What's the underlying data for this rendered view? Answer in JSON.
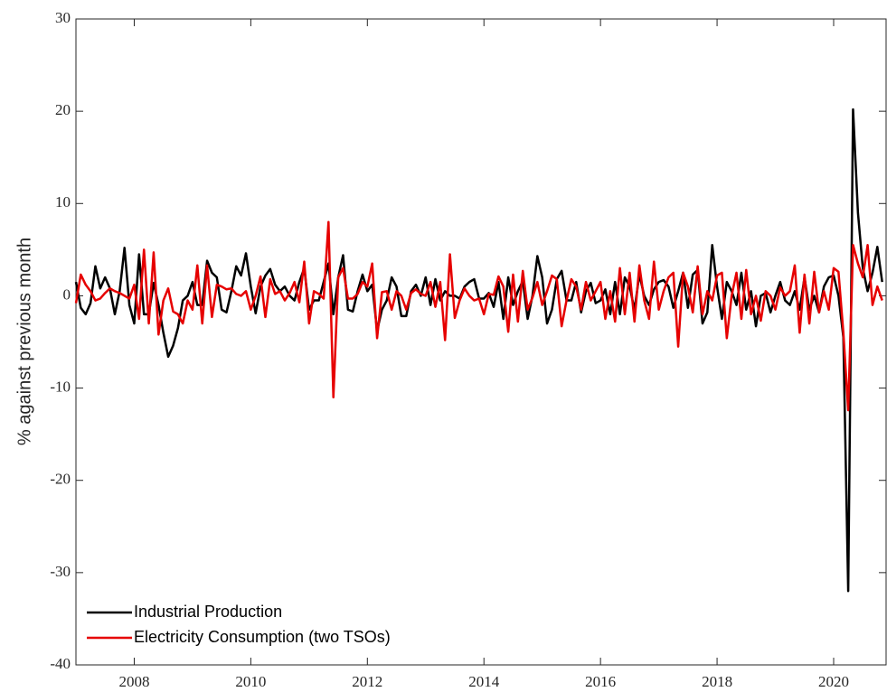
{
  "chart_data": {
    "type": "line",
    "ylabel": "% against previous month",
    "x": [
      2007,
      2007.083,
      2007.167,
      2007.25,
      2007.333,
      2007.417,
      2007.5,
      2007.583,
      2007.667,
      2007.75,
      2007.833,
      2007.917,
      2008,
      2008.083,
      2008.167,
      2008.25,
      2008.333,
      2008.417,
      2008.5,
      2008.583,
      2008.667,
      2008.75,
      2008.833,
      2008.917,
      2009,
      2009.083,
      2009.167,
      2009.25,
      2009.333,
      2009.417,
      2009.5,
      2009.583,
      2009.667,
      2009.75,
      2009.833,
      2009.917,
      2010,
      2010.083,
      2010.167,
      2010.25,
      2010.333,
      2010.417,
      2010.5,
      2010.583,
      2010.667,
      2010.75,
      2010.833,
      2010.917,
      2011,
      2011.083,
      2011.167,
      2011.25,
      2011.333,
      2011.417,
      2011.5,
      2011.583,
      2011.667,
      2011.75,
      2011.833,
      2011.917,
      2012,
      2012.083,
      2012.167,
      2012.25,
      2012.333,
      2012.417,
      2012.5,
      2012.583,
      2012.667,
      2012.75,
      2012.833,
      2012.917,
      2013,
      2013.083,
      2013.167,
      2013.25,
      2013.333,
      2013.417,
      2013.5,
      2013.583,
      2013.667,
      2013.75,
      2013.833,
      2013.917,
      2014,
      2014.083,
      2014.167,
      2014.25,
      2014.333,
      2014.417,
      2014.5,
      2014.583,
      2014.667,
      2014.75,
      2014.833,
      2014.917,
      2015,
      2015.083,
      2015.167,
      2015.25,
      2015.333,
      2015.417,
      2015.5,
      2015.583,
      2015.667,
      2015.75,
      2015.833,
      2015.917,
      2016,
      2016.083,
      2016.167,
      2016.25,
      2016.333,
      2016.417,
      2016.5,
      2016.583,
      2016.667,
      2016.75,
      2016.833,
      2016.917,
      2017,
      2017.083,
      2017.167,
      2017.25,
      2017.333,
      2017.417,
      2017.5,
      2017.583,
      2017.667,
      2017.75,
      2017.833,
      2017.917,
      2018,
      2018.083,
      2018.167,
      2018.25,
      2018.333,
      2018.417,
      2018.5,
      2018.583,
      2018.667,
      2018.75,
      2018.833,
      2018.917,
      2019,
      2019.083,
      2019.167,
      2019.25,
      2019.333,
      2019.417,
      2019.5,
      2019.583,
      2019.667,
      2019.75,
      2019.833,
      2019.917,
      2020,
      2020.083,
      2020.167,
      2020.25,
      2020.333,
      2020.417,
      2020.5,
      2020.583,
      2020.667,
      2020.75,
      2020.833
    ],
    "series": [
      {
        "name": "Industrial Production",
        "color": "#000000",
        "values": [
          1.5,
          -1.3,
          -2,
          -0.8,
          3.2,
          0.8,
          2,
          0.8,
          -2,
          0.5,
          5.2,
          -1,
          -3,
          4.5,
          -2,
          -2,
          1.4,
          -1,
          -4,
          -6.6,
          -5.4,
          -3.5,
          -0.5,
          0,
          1.5,
          -1,
          -1,
          3.8,
          2.5,
          2,
          -1.5,
          -1.8,
          0.5,
          3.2,
          2.2,
          4.6,
          1,
          -1.9,
          1,
          2.2,
          2.9,
          1.2,
          0.5,
          1,
          0,
          -0.5,
          1.5,
          3,
          -1.5,
          -0.5,
          -0.5,
          1.5,
          3.5,
          -2,
          2,
          4.4,
          -1.5,
          -1.7,
          0.5,
          2.3,
          0.5,
          1.2,
          -3.8,
          -1.5,
          -0.5,
          2,
          1,
          -2.2,
          -2.2,
          0.5,
          1.2,
          0,
          2,
          -1,
          1.8,
          -0.5,
          0.5,
          0,
          0,
          -0.3,
          1,
          1.5,
          1.8,
          -0.3,
          -0.3,
          0.3,
          -1.2,
          1.5,
          -2.5,
          2,
          -1,
          0.5,
          1.6,
          -2.5,
          0,
          4.3,
          2,
          -3,
          -1.5,
          1.8,
          2.7,
          -0.5,
          -0.5,
          1.5,
          -1.8,
          0.5,
          1.4,
          -0.8,
          -0.5,
          0.7,
          -2,
          1.5,
          -2,
          2,
          1,
          -1.5,
          2.3,
          0,
          -1,
          0.7,
          1.5,
          1.7,
          1,
          -1.3,
          0.5,
          2.5,
          -1.3,
          2.3,
          2.8,
          -3,
          -1.8,
          5.5,
          1,
          -2.5,
          1.5,
          0.5,
          -1,
          2.5,
          -1.5,
          0.5,
          -3.3,
          0,
          0.3,
          -1.8,
          0,
          1.5,
          -0.5,
          -1,
          0.5,
          -1.5,
          2,
          -1.5,
          0,
          -1.8,
          1,
          2,
          2.2,
          0,
          -4.5,
          -32,
          20.2,
          9,
          3,
          0.5,
          2.5,
          5.3,
          1.5
        ]
      },
      {
        "name": "Electricity Consumption (two TSOs)",
        "color": "#e60000",
        "values": [
          -0.8,
          2.3,
          1.2,
          0.5,
          -0.5,
          -0.3,
          0.3,
          0.8,
          0.5,
          0.3,
          0,
          -0.3,
          1.2,
          -2.5,
          5,
          -3,
          4.7,
          -4.2,
          -0.5,
          0.8,
          -1.7,
          -2,
          -3,
          -0.5,
          -1.5,
          3.3,
          -3,
          3.3,
          -2.3,
          1.2,
          1,
          0.7,
          0.8,
          0.2,
          0,
          0.5,
          -1.5,
          0,
          2.1,
          -2.3,
          1.8,
          0.2,
          0.5,
          -0.5,
          0.3,
          1.5,
          -0.7,
          3.7,
          -3,
          0.5,
          0.2,
          -0.3,
          8,
          -11,
          2,
          3,
          -0.3,
          -0.3,
          0.2,
          1.5,
          1,
          3.5,
          -4.6,
          0.4,
          0.5,
          -1.5,
          0.5,
          0,
          -1.5,
          0.3,
          0.7,
          0.2,
          0,
          1.5,
          -1.2,
          1.5,
          -4.8,
          4.5,
          -2.4,
          -0.5,
          0.8,
          0,
          -0.5,
          -0.3,
          -2,
          0.2,
          0.1,
          2.1,
          1,
          -3.9,
          2.3,
          -2.8,
          2.7,
          -1.5,
          -0.2,
          1.5,
          -1,
          0.5,
          2.2,
          1.8,
          -3.3,
          -0.5,
          1.8,
          1,
          -1.5,
          1.5,
          -0.5,
          0.5,
          1.5,
          -2.5,
          0.5,
          -2.8,
          3,
          -2,
          2.5,
          -2.8,
          3.3,
          -0.5,
          -2.5,
          3.7,
          -1.5,
          0.5,
          2,
          2.5,
          -5.5,
          2.5,
          1,
          -1.8,
          3.2,
          -2,
          0.5,
          -0.5,
          2.2,
          2.5,
          -4.6,
          0,
          2.5,
          -2.5,
          2.8,
          -2,
          0,
          -2.7,
          0.5,
          0,
          -1.5,
          0.9,
          0,
          0.5,
          3.3,
          -4,
          2.3,
          -3,
          2.6,
          -1.8,
          0.5,
          -1.5,
          3,
          2.6,
          -4,
          -12.4,
          5.5,
          3.5,
          2,
          5.5,
          -1,
          1,
          -0.5
        ]
      }
    ],
    "xlim": [
      2007,
      2020.9
    ],
    "xticks": [
      2008,
      2010,
      2012,
      2014,
      2016,
      2018,
      2020
    ],
    "ylim": [
      -40,
      30
    ],
    "yticks": [
      -40,
      -30,
      -20,
      -10,
      0,
      10,
      20,
      30
    ],
    "legend": "southwest"
  }
}
